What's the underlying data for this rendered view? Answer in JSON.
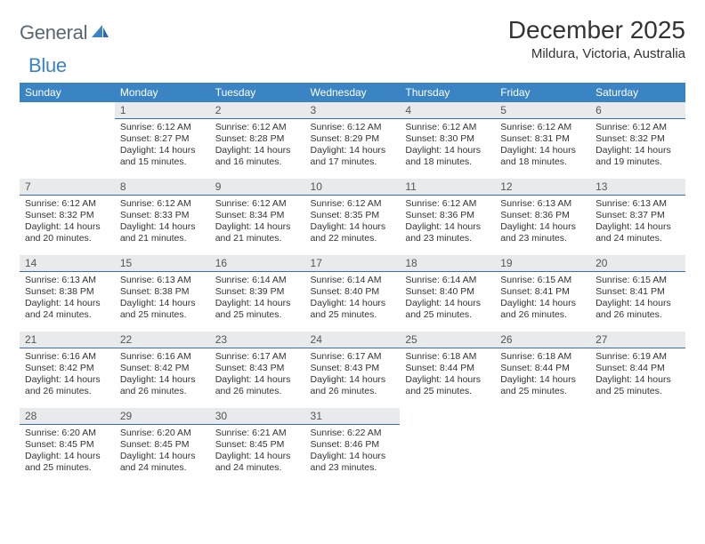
{
  "logo": {
    "text_part1": "General",
    "text_part2": "Blue",
    "text_color_1": "#5b6670",
    "text_color_2": "#3a84c4",
    "icon_color": "#3a84c4"
  },
  "title": "December 2025",
  "location": "Mildura, Victoria, Australia",
  "colors": {
    "header_bg": "#3a84c4",
    "header_text": "#ffffff",
    "daynum_bg": "#e9eaec",
    "daynum_border": "#3a6fa0",
    "body_text": "#333333"
  },
  "day_headers": [
    "Sunday",
    "Monday",
    "Tuesday",
    "Wednesday",
    "Thursday",
    "Friday",
    "Saturday"
  ],
  "weeks": [
    [
      null,
      {
        "n": "1",
        "sr": "6:12 AM",
        "ss": "8:27 PM",
        "dl": "14 hours and 15 minutes."
      },
      {
        "n": "2",
        "sr": "6:12 AM",
        "ss": "8:28 PM",
        "dl": "14 hours and 16 minutes."
      },
      {
        "n": "3",
        "sr": "6:12 AM",
        "ss": "8:29 PM",
        "dl": "14 hours and 17 minutes."
      },
      {
        "n": "4",
        "sr": "6:12 AM",
        "ss": "8:30 PM",
        "dl": "14 hours and 18 minutes."
      },
      {
        "n": "5",
        "sr": "6:12 AM",
        "ss": "8:31 PM",
        "dl": "14 hours and 18 minutes."
      },
      {
        "n": "6",
        "sr": "6:12 AM",
        "ss": "8:32 PM",
        "dl": "14 hours and 19 minutes."
      }
    ],
    [
      {
        "n": "7",
        "sr": "6:12 AM",
        "ss": "8:32 PM",
        "dl": "14 hours and 20 minutes."
      },
      {
        "n": "8",
        "sr": "6:12 AM",
        "ss": "8:33 PM",
        "dl": "14 hours and 21 minutes."
      },
      {
        "n": "9",
        "sr": "6:12 AM",
        "ss": "8:34 PM",
        "dl": "14 hours and 21 minutes."
      },
      {
        "n": "10",
        "sr": "6:12 AM",
        "ss": "8:35 PM",
        "dl": "14 hours and 22 minutes."
      },
      {
        "n": "11",
        "sr": "6:12 AM",
        "ss": "8:36 PM",
        "dl": "14 hours and 23 minutes."
      },
      {
        "n": "12",
        "sr": "6:13 AM",
        "ss": "8:36 PM",
        "dl": "14 hours and 23 minutes."
      },
      {
        "n": "13",
        "sr": "6:13 AM",
        "ss": "8:37 PM",
        "dl": "14 hours and 24 minutes."
      }
    ],
    [
      {
        "n": "14",
        "sr": "6:13 AM",
        "ss": "8:38 PM",
        "dl": "14 hours and 24 minutes."
      },
      {
        "n": "15",
        "sr": "6:13 AM",
        "ss": "8:38 PM",
        "dl": "14 hours and 25 minutes."
      },
      {
        "n": "16",
        "sr": "6:14 AM",
        "ss": "8:39 PM",
        "dl": "14 hours and 25 minutes."
      },
      {
        "n": "17",
        "sr": "6:14 AM",
        "ss": "8:40 PM",
        "dl": "14 hours and 25 minutes."
      },
      {
        "n": "18",
        "sr": "6:14 AM",
        "ss": "8:40 PM",
        "dl": "14 hours and 25 minutes."
      },
      {
        "n": "19",
        "sr": "6:15 AM",
        "ss": "8:41 PM",
        "dl": "14 hours and 26 minutes."
      },
      {
        "n": "20",
        "sr": "6:15 AM",
        "ss": "8:41 PM",
        "dl": "14 hours and 26 minutes."
      }
    ],
    [
      {
        "n": "21",
        "sr": "6:16 AM",
        "ss": "8:42 PM",
        "dl": "14 hours and 26 minutes."
      },
      {
        "n": "22",
        "sr": "6:16 AM",
        "ss": "8:42 PM",
        "dl": "14 hours and 26 minutes."
      },
      {
        "n": "23",
        "sr": "6:17 AM",
        "ss": "8:43 PM",
        "dl": "14 hours and 26 minutes."
      },
      {
        "n": "24",
        "sr": "6:17 AM",
        "ss": "8:43 PM",
        "dl": "14 hours and 26 minutes."
      },
      {
        "n": "25",
        "sr": "6:18 AM",
        "ss": "8:44 PM",
        "dl": "14 hours and 25 minutes."
      },
      {
        "n": "26",
        "sr": "6:18 AM",
        "ss": "8:44 PM",
        "dl": "14 hours and 25 minutes."
      },
      {
        "n": "27",
        "sr": "6:19 AM",
        "ss": "8:44 PM",
        "dl": "14 hours and 25 minutes."
      }
    ],
    [
      {
        "n": "28",
        "sr": "6:20 AM",
        "ss": "8:45 PM",
        "dl": "14 hours and 25 minutes."
      },
      {
        "n": "29",
        "sr": "6:20 AM",
        "ss": "8:45 PM",
        "dl": "14 hours and 24 minutes."
      },
      {
        "n": "30",
        "sr": "6:21 AM",
        "ss": "8:45 PM",
        "dl": "14 hours and 24 minutes."
      },
      {
        "n": "31",
        "sr": "6:22 AM",
        "ss": "8:46 PM",
        "dl": "14 hours and 23 minutes."
      },
      null,
      null,
      null
    ]
  ],
  "labels": {
    "sunrise": "Sunrise:",
    "sunset": "Sunset:",
    "daylight": "Daylight:"
  }
}
